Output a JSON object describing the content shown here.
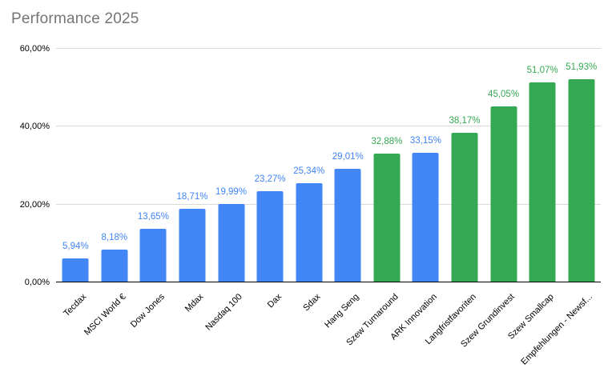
{
  "chart_data": {
    "type": "bar",
    "title": "Performance 2025",
    "categories": [
      "Tecdax",
      "MSCI World €",
      "Dow Jones",
      "Mdax",
      "Nasdaq 100",
      "Dax",
      "Sdax",
      "Hang Seng",
      "Szew Turnaround",
      "ARK Innovation",
      "Langfristfavoriten",
      "Szew Grundinvest",
      "Szew Smallcap",
      "Empfehlungen - Newsf..."
    ],
    "values": [
      5.94,
      8.18,
      13.65,
      18.71,
      19.99,
      23.27,
      25.34,
      29.01,
      32.88,
      33.15,
      38.17,
      45.05,
      51.07,
      51.93
    ],
    "value_labels": [
      "5,94%",
      "8,18%",
      "13,65%",
      "18,71%",
      "19,99%",
      "23,27%",
      "25,34%",
      "29,01%",
      "32,88%",
      "33,15%",
      "38,17%",
      "45,05%",
      "51,07%",
      "51,93%"
    ],
    "bar_colors": [
      "#4285f4",
      "#4285f4",
      "#4285f4",
      "#4285f4",
      "#4285f4",
      "#4285f4",
      "#4285f4",
      "#4285f4",
      "#34a853",
      "#4285f4",
      "#34a853",
      "#34a853",
      "#34a853",
      "#34a853"
    ],
    "yticks": [
      {
        "value": 0,
        "label": "0,00%"
      },
      {
        "value": 20,
        "label": "20,00%"
      },
      {
        "value": 40,
        "label": "40,00%"
      },
      {
        "value": 60,
        "label": "60,00%"
      }
    ],
    "ylim": [
      0,
      60
    ],
    "xlabel": "",
    "ylabel": "",
    "grid": true,
    "legend": "none",
    "colors": {
      "blue": "#4285f4",
      "green": "#34a853",
      "gridline": "#dadada",
      "axis_line": "#000000",
      "title_text": "#757575",
      "tick_text": "#000000"
    }
  }
}
